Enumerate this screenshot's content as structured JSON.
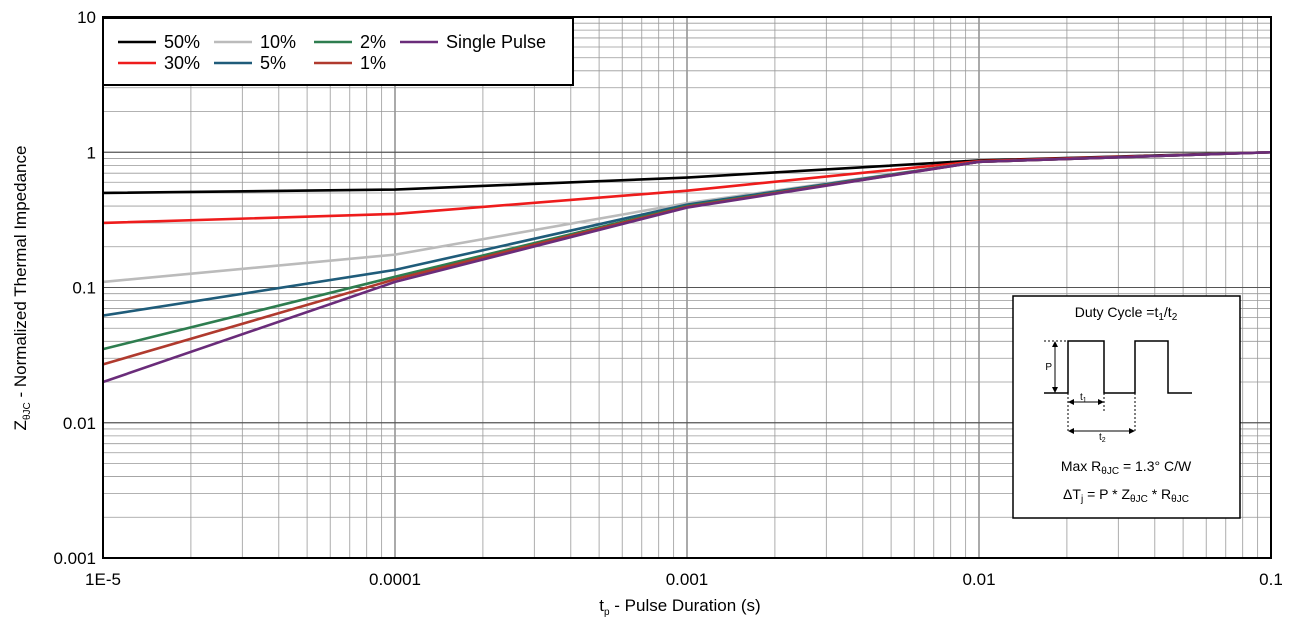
{
  "chart_data": {
    "type": "line",
    "xscale": "log",
    "yscale": "log",
    "xlim": [
      1e-05,
      0.1
    ],
    "ylim": [
      0.001,
      10
    ],
    "grid": true,
    "x_ticks": [
      {
        "value": 1e-05,
        "label": "1E-5"
      },
      {
        "value": 0.0001,
        "label": "0.0001"
      },
      {
        "value": 0.001,
        "label": "0.001"
      },
      {
        "value": 0.01,
        "label": "0.01"
      },
      {
        "value": 0.1,
        "label": "0.1"
      }
    ],
    "y_ticks": [
      {
        "value": 0.001,
        "label": "0.001"
      },
      {
        "value": 0.01,
        "label": "0.01"
      },
      {
        "value": 0.1,
        "label": "0.1"
      },
      {
        "value": 1,
        "label": "1"
      },
      {
        "value": 10,
        "label": "10"
      }
    ],
    "xlabel": {
      "main": "t",
      "sub": "p",
      "rest": " - Pulse Duration (s)"
    },
    "ylabel": {
      "main": "Z",
      "sub": "θJC",
      "rest": " - Normalized Thermal Impedance"
    },
    "legend_position": "top-left",
    "series": [
      {
        "name": "50%",
        "color": "#000000",
        "x": [
          1e-05,
          0.0001,
          0.001,
          0.01,
          0.1
        ],
        "y": [
          0.5,
          0.53,
          0.65,
          0.87,
          1.0
        ]
      },
      {
        "name": "30%",
        "color": "#ee1c1c",
        "x": [
          1e-05,
          0.0001,
          0.001,
          0.01,
          0.1
        ],
        "y": [
          0.3,
          0.35,
          0.52,
          0.86,
          1.0
        ]
      },
      {
        "name": "10%",
        "color": "#bbbbbb",
        "x": [
          1e-05,
          0.0001,
          0.001,
          0.01,
          0.1
        ],
        "y": [
          0.11,
          0.175,
          0.42,
          0.85,
          1.0
        ]
      },
      {
        "name": "5%",
        "color": "#1f5c7a",
        "x": [
          1e-05,
          0.0001,
          0.001,
          0.01,
          0.1
        ],
        "y": [
          0.062,
          0.135,
          0.41,
          0.85,
          1.0
        ]
      },
      {
        "name": "2%",
        "color": "#2e7d4f",
        "x": [
          1e-05,
          0.0001,
          0.001,
          0.01,
          0.1
        ],
        "y": [
          0.035,
          0.12,
          0.4,
          0.85,
          1.0
        ]
      },
      {
        "name": "1%",
        "color": "#b03a2e",
        "x": [
          1e-05,
          0.0001,
          0.001,
          0.01,
          0.1
        ],
        "y": [
          0.027,
          0.115,
          0.395,
          0.85,
          1.0
        ]
      },
      {
        "name": "Single Pulse",
        "color": "#6a2c7a",
        "x": [
          1e-05,
          0.0001,
          0.001,
          0.01,
          0.1
        ],
        "y": [
          0.02,
          0.11,
          0.39,
          0.85,
          1.0
        ]
      }
    ],
    "annotation": {
      "title": "Duty Cycle =t",
      "title_sub1": "1",
      "title_mid": "/t",
      "title_sub2": "2",
      "p_label": "P",
      "t1_label": "t",
      "t1_sub": "1",
      "t2_label": "t",
      "t2_sub": "2",
      "rth_main": "Max R",
      "rth_sub": "θJC",
      "rth_rest": " = 1.3° C/W",
      "dt_a": "ΔT",
      "dt_a_sub": "j",
      "dt_b": " = P * Z",
      "dt_b_sub": "θJC",
      "dt_c": " * R",
      "dt_c_sub": "θJC"
    }
  }
}
